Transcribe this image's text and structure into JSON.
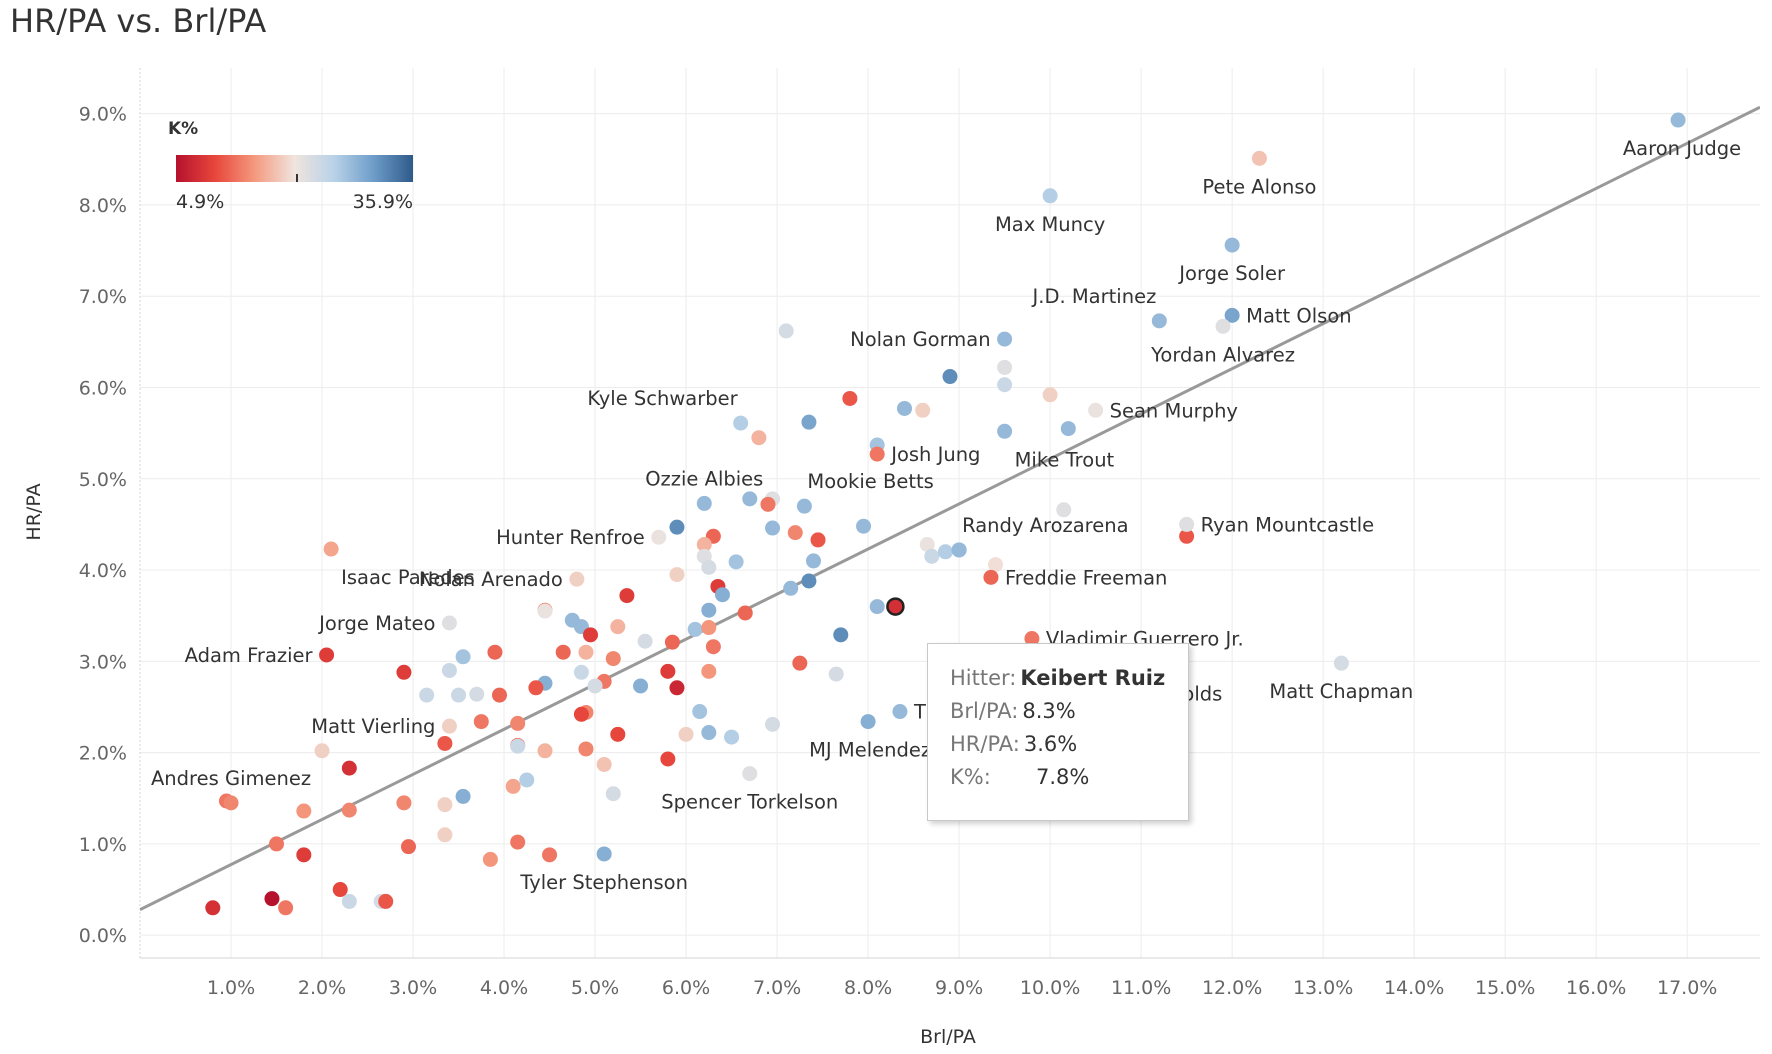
{
  "title": "HR/PA vs. Brl/PA",
  "chart_data": {
    "type": "scatter",
    "title": "HR/PA vs. Brl/PA",
    "xlabel": "Brl/PA",
    "ylabel": "HR/PA",
    "xlim": [
      0.0,
      17.8
    ],
    "ylim": [
      -0.25,
      9.5
    ],
    "x_ticks": [
      "1.0%",
      "2.0%",
      "3.0%",
      "4.0%",
      "5.0%",
      "6.0%",
      "7.0%",
      "8.0%",
      "9.0%",
      "10.0%",
      "11.0%",
      "12.0%",
      "13.0%",
      "14.0%",
      "15.0%",
      "16.0%",
      "17.0%"
    ],
    "x_tick_values": [
      1,
      2,
      3,
      4,
      5,
      6,
      7,
      8,
      9,
      10,
      11,
      12,
      13,
      14,
      15,
      16,
      17
    ],
    "y_ticks": [
      "0.0%",
      "1.0%",
      "2.0%",
      "3.0%",
      "4.0%",
      "5.0%",
      "6.0%",
      "7.0%",
      "8.0%",
      "9.0%"
    ],
    "y_tick_values": [
      0,
      1,
      2,
      3,
      4,
      5,
      6,
      7,
      8,
      9
    ],
    "grid": true,
    "trend_line": {
      "x": [
        0.0,
        17.8
      ],
      "y": [
        0.28,
        9.07
      ],
      "color": "#999999"
    },
    "color_scale": {
      "title": "K%",
      "min_label": "4.9%",
      "max_label": "35.9%",
      "min": 4.9,
      "max": 35.9,
      "colors": [
        "#b5112e",
        "#e8473c",
        "#f49a7f",
        "#f0e4de",
        "#b9d2e8",
        "#6e9dc9",
        "#2e5a8a"
      ]
    },
    "labeled_points": [
      {
        "name": "Aaron Judge",
        "x": 16.9,
        "y": 8.93,
        "k": 28,
        "label_pos": "below-left"
      },
      {
        "name": "Pete Alonso",
        "x": 12.3,
        "y": 8.51,
        "k": 18,
        "label_pos": "below"
      },
      {
        "name": "Max Muncy",
        "x": 10.0,
        "y": 8.1,
        "k": 26,
        "label_pos": "below"
      },
      {
        "name": "Jorge Soler",
        "x": 12.0,
        "y": 7.56,
        "k": 28,
        "label_pos": "below"
      },
      {
        "name": "J.D. Martinez",
        "x": 11.2,
        "y": 6.73,
        "k": 28,
        "label_pos": "above-left"
      },
      {
        "name": "Matt Olson",
        "x": 12.0,
        "y": 6.79,
        "k": 30,
        "label_pos": "right"
      },
      {
        "name": "Yordan Alvarez",
        "x": 11.9,
        "y": 6.67,
        "k": 22,
        "label_pos": "below"
      },
      {
        "name": "Nolan Gorman",
        "x": 9.5,
        "y": 6.53,
        "k": 28,
        "label_pos": "left"
      },
      {
        "name": "Sean Murphy",
        "x": 10.5,
        "y": 5.75,
        "k": 21,
        "label_pos": "right"
      },
      {
        "name": "Kyle Schwarber",
        "x": 6.6,
        "y": 5.61,
        "k": 26,
        "label_pos": "above-left"
      },
      {
        "name": "Mike Trout",
        "x": 9.5,
        "y": 5.52,
        "k": 28,
        "label_pos": "below-right"
      },
      {
        "name": "Josh Jung",
        "x": 8.1,
        "y": 5.27,
        "k": 13,
        "label_pos": "right"
      },
      {
        "name": "Ozzie Albies",
        "x": 6.2,
        "y": 4.73,
        "k": 28,
        "label_pos": "above"
      },
      {
        "name": "Mookie Betts",
        "x": 7.3,
        "y": 4.7,
        "k": 28,
        "label_pos": "above-right"
      },
      {
        "name": "Ryan Mountcastle",
        "x": 11.5,
        "y": 4.5,
        "k": 22,
        "label_pos": "right"
      },
      {
        "name": "Hunter Renfroe",
        "x": 5.7,
        "y": 4.36,
        "k": 21,
        "label_pos": "left"
      },
      {
        "name": "Randy Arozarena",
        "x": 9.0,
        "y": 4.22,
        "k": 28,
        "label_pos": "above-right"
      },
      {
        "name": "Isaac Paredes",
        "x": 2.1,
        "y": 4.23,
        "k": 16,
        "label_pos": "below-right"
      },
      {
        "name": "Nolan Arenado",
        "x": 4.8,
        "y": 3.9,
        "k": 19,
        "label_pos": "left"
      },
      {
        "name": "Freddie Freeman",
        "x": 9.35,
        "y": 3.92,
        "k": 12,
        "label_pos": "right"
      },
      {
        "name": "Jorge Mateo",
        "x": 3.4,
        "y": 3.42,
        "k": 22,
        "label_pos": "left"
      },
      {
        "name": "Vladimir Guerrero Jr.",
        "x": 9.8,
        "y": 3.25,
        "k": 13,
        "label_pos": "right"
      },
      {
        "name": "Adam Frazier",
        "x": 2.05,
        "y": 3.07,
        "k": 9,
        "label_pos": "left"
      },
      {
        "name": "Matt Chapman",
        "x": 13.2,
        "y": 2.98,
        "k": 23,
        "label_pos": "below"
      },
      {
        "name": "Matt Vierling",
        "x": 3.4,
        "y": 2.29,
        "k": 19,
        "label_pos": "left"
      },
      {
        "name": "MJ Melendez",
        "x": 8.0,
        "y": 2.34,
        "k": 29,
        "label_pos": "below-left"
      },
      {
        "name": "Andres Gimenez",
        "x": 1.0,
        "y": 1.45,
        "k": 14,
        "label_pos": "above"
      },
      {
        "name": "Spencer Torkelson",
        "x": 6.7,
        "y": 1.77,
        "k": 22,
        "label_pos": "below"
      },
      {
        "name": "Tyler Stephenson",
        "x": 5.1,
        "y": 0.89,
        "k": 29,
        "label_pos": "below"
      }
    ],
    "points": [
      {
        "x": 8.3,
        "y": 3.6,
        "k": 7.8,
        "highlight": true
      },
      {
        "x": 9.5,
        "y": 6.22,
        "k": 22
      },
      {
        "x": 8.9,
        "y": 6.12,
        "k": 32
      },
      {
        "x": 9.5,
        "y": 6.03,
        "k": 24
      },
      {
        "x": 10.0,
        "y": 5.92,
        "k": 19
      },
      {
        "x": 7.8,
        "y": 5.88,
        "k": 11
      },
      {
        "x": 8.4,
        "y": 5.77,
        "k": 28
      },
      {
        "x": 8.6,
        "y": 5.75,
        "k": 19
      },
      {
        "x": 7.35,
        "y": 5.62,
        "k": 30
      },
      {
        "x": 6.8,
        "y": 5.45,
        "k": 17
      },
      {
        "x": 7.1,
        "y": 6.62,
        "k": 23
      },
      {
        "x": 8.1,
        "y": 5.37,
        "k": 27
      },
      {
        "x": 10.2,
        "y": 5.55,
        "k": 28
      },
      {
        "x": 6.7,
        "y": 4.78,
        "k": 28
      },
      {
        "x": 6.95,
        "y": 4.78,
        "k": 22
      },
      {
        "x": 6.9,
        "y": 4.72,
        "k": 13
      },
      {
        "x": 5.9,
        "y": 4.47,
        "k": 32
      },
      {
        "x": 6.3,
        "y": 4.37,
        "k": 12
      },
      {
        "x": 6.95,
        "y": 4.46,
        "k": 28
      },
      {
        "x": 7.2,
        "y": 4.41,
        "k": 14
      },
      {
        "x": 7.45,
        "y": 4.33,
        "k": 11
      },
      {
        "x": 7.95,
        "y": 4.48,
        "k": 28
      },
      {
        "x": 10.15,
        "y": 4.66,
        "k": 22
      },
      {
        "x": 6.2,
        "y": 4.28,
        "k": 17
      },
      {
        "x": 6.2,
        "y": 4.15,
        "k": 22
      },
      {
        "x": 6.25,
        "y": 4.03,
        "k": 23
      },
      {
        "x": 6.55,
        "y": 4.09,
        "k": 27
      },
      {
        "x": 7.4,
        "y": 4.1,
        "k": 28
      },
      {
        "x": 5.9,
        "y": 3.95,
        "k": 19
      },
      {
        "x": 6.35,
        "y": 3.82,
        "k": 9
      },
      {
        "x": 6.4,
        "y": 3.73,
        "k": 29
      },
      {
        "x": 7.15,
        "y": 3.8,
        "k": 28
      },
      {
        "x": 7.35,
        "y": 3.88,
        "k": 32
      },
      {
        "x": 8.65,
        "y": 4.28,
        "k": 21
      },
      {
        "x": 8.7,
        "y": 4.15,
        "k": 24
      },
      {
        "x": 8.85,
        "y": 4.2,
        "k": 26
      },
      {
        "x": 9.0,
        "y": 4.22,
        "k": 28
      },
      {
        "x": 9.4,
        "y": 4.06,
        "k": 20
      },
      {
        "x": 5.35,
        "y": 3.72,
        "k": 9
      },
      {
        "x": 6.25,
        "y": 3.56,
        "k": 29
      },
      {
        "x": 6.65,
        "y": 3.53,
        "k": 12
      },
      {
        "x": 8.1,
        "y": 3.6,
        "k": 28
      },
      {
        "x": 4.45,
        "y": 3.56,
        "k": 14
      },
      {
        "x": 4.45,
        "y": 3.55,
        "k": 21
      },
      {
        "x": 5.25,
        "y": 3.38,
        "k": 17
      },
      {
        "x": 4.75,
        "y": 3.45,
        "k": 28
      },
      {
        "x": 4.85,
        "y": 3.38,
        "k": 28
      },
      {
        "x": 4.95,
        "y": 3.29,
        "k": 9
      },
      {
        "x": 5.55,
        "y": 3.22,
        "k": 23
      },
      {
        "x": 6.1,
        "y": 3.35,
        "k": 27
      },
      {
        "x": 6.25,
        "y": 3.37,
        "k": 15
      },
      {
        "x": 5.85,
        "y": 3.21,
        "k": 12
      },
      {
        "x": 6.3,
        "y": 3.16,
        "k": 13
      },
      {
        "x": 7.7,
        "y": 3.29,
        "k": 32
      },
      {
        "x": 3.55,
        "y": 3.05,
        "k": 27
      },
      {
        "x": 3.9,
        "y": 3.1,
        "k": 12
      },
      {
        "x": 4.65,
        "y": 3.1,
        "k": 12
      },
      {
        "x": 4.9,
        "y": 3.1,
        "k": 17
      },
      {
        "x": 5.2,
        "y": 3.03,
        "k": 14
      },
      {
        "x": 2.9,
        "y": 2.88,
        "k": 9
      },
      {
        "x": 3.4,
        "y": 2.9,
        "k": 24
      },
      {
        "x": 4.85,
        "y": 2.88,
        "k": 24
      },
      {
        "x": 5.1,
        "y": 2.78,
        "k": 13
      },
      {
        "x": 5.8,
        "y": 2.89,
        "k": 9
      },
      {
        "x": 6.25,
        "y": 2.89,
        "k": 15
      },
      {
        "x": 7.25,
        "y": 2.98,
        "k": 12
      },
      {
        "x": 7.65,
        "y": 2.86,
        "k": 23
      },
      {
        "x": 4.45,
        "y": 2.76,
        "k": 29
      },
      {
        "x": 4.35,
        "y": 2.71,
        "k": 11
      },
      {
        "x": 5.0,
        "y": 2.73,
        "k": 23
      },
      {
        "x": 5.5,
        "y": 2.73,
        "k": 29
      },
      {
        "x": 5.9,
        "y": 2.71,
        "k": 7
      },
      {
        "x": 3.15,
        "y": 2.63,
        "k": 24
      },
      {
        "x": 3.5,
        "y": 2.63,
        "k": 24
      },
      {
        "x": 3.7,
        "y": 2.64,
        "k": 23
      },
      {
        "x": 3.95,
        "y": 2.63,
        "k": 12
      },
      {
        "x": 6.15,
        "y": 2.45,
        "k": 27
      },
      {
        "x": 4.9,
        "y": 2.44,
        "k": 14
      },
      {
        "x": 4.85,
        "y": 2.42,
        "k": 10
      },
      {
        "x": 3.75,
        "y": 2.34,
        "k": 13
      },
      {
        "x": 4.15,
        "y": 2.32,
        "k": 14
      },
      {
        "x": 6.95,
        "y": 2.31,
        "k": 23
      },
      {
        "x": 8.35,
        "y": 2.45,
        "k": 28
      },
      {
        "x": 6.25,
        "y": 2.22,
        "k": 28
      },
      {
        "x": 6.0,
        "y": 2.2,
        "k": 19
      },
      {
        "x": 6.5,
        "y": 2.17,
        "k": 26
      },
      {
        "x": 5.25,
        "y": 2.2,
        "k": 10
      },
      {
        "x": 3.35,
        "y": 2.1,
        "k": 11
      },
      {
        "x": 4.15,
        "y": 2.08,
        "k": 13
      },
      {
        "x": 4.15,
        "y": 2.07,
        "k": 24
      },
      {
        "x": 4.45,
        "y": 2.02,
        "k": 17
      },
      {
        "x": 4.9,
        "y": 2.04,
        "k": 14
      },
      {
        "x": 2.0,
        "y": 2.02,
        "k": 19
      },
      {
        "x": 2.3,
        "y": 1.83,
        "k": 8
      },
      {
        "x": 5.1,
        "y": 1.87,
        "k": 18
      },
      {
        "x": 5.8,
        "y": 1.93,
        "k": 10
      },
      {
        "x": 4.25,
        "y": 1.7,
        "k": 26
      },
      {
        "x": 4.1,
        "y": 1.63,
        "k": 16
      },
      {
        "x": 5.2,
        "y": 1.55,
        "k": 23
      },
      {
        "x": 3.55,
        "y": 1.52,
        "k": 29
      },
      {
        "x": 2.9,
        "y": 1.45,
        "k": 14
      },
      {
        "x": 3.35,
        "y": 1.43,
        "k": 19
      },
      {
        "x": 1.8,
        "y": 1.36,
        "k": 15
      },
      {
        "x": 2.3,
        "y": 1.37,
        "k": 14
      },
      {
        "x": 3.35,
        "y": 1.1,
        "k": 19
      },
      {
        "x": 1.5,
        "y": 1.0,
        "k": 13
      },
      {
        "x": 2.95,
        "y": 0.97,
        "k": 12
      },
      {
        "x": 4.15,
        "y": 1.02,
        "k": 13
      },
      {
        "x": 1.8,
        "y": 0.88,
        "k": 9
      },
      {
        "x": 3.85,
        "y": 0.83,
        "k": 15
      },
      {
        "x": 4.5,
        "y": 0.88,
        "k": 13
      },
      {
        "x": 2.2,
        "y": 0.5,
        "k": 10
      },
      {
        "x": 1.45,
        "y": 0.4,
        "k": 5
      },
      {
        "x": 2.3,
        "y": 0.37,
        "k": 24
      },
      {
        "x": 2.65,
        "y": 0.37,
        "k": 23
      },
      {
        "x": 2.7,
        "y": 0.37,
        "k": 11
      },
      {
        "x": 0.8,
        "y": 0.3,
        "k": 8
      },
      {
        "x": 1.6,
        "y": 0.3,
        "k": 13
      },
      {
        "x": 0.95,
        "y": 1.47,
        "k": 13
      },
      {
        "x": 11.5,
        "y": 4.37,
        "k": 11
      }
    ]
  },
  "tooltip": {
    "rows": [
      {
        "key": "Hitter:",
        "value": "Keibert Ruiz",
        "bold": true
      },
      {
        "key": "Brl/PA:",
        "value": "8.3%",
        "bold": false
      },
      {
        "key": "HR/PA:",
        "value": "3.6%",
        "bold": false
      },
      {
        "key": "K%:",
        "value": "7.8%",
        "bold": false
      }
    ]
  },
  "hidden_label_fragments": [
    {
      "text": "T",
      "x": 8.35,
      "y": 2.45
    },
    {
      "text": "olds",
      "x": 11.3,
      "y": 2.65
    }
  ]
}
